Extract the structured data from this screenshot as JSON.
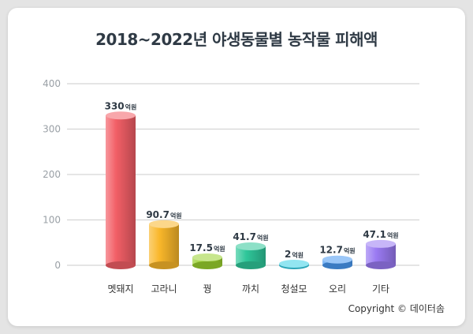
{
  "title": "2018~2022년 야생동물별 농작물 피해액",
  "copyright": "Copyright © 데이터솜",
  "chart_data": {
    "type": "bar",
    "title": "2018~2022년 야생동물별 농작물 피해액",
    "xlabel": "",
    "ylabel": "",
    "ylim": [
      0,
      400
    ],
    "yticks": [
      0,
      100,
      200,
      300,
      400
    ],
    "grid": true,
    "unit": "억원",
    "categories": [
      "멧돼지",
      "고라니",
      "꿩",
      "까치",
      "청설모",
      "오리",
      "기타"
    ],
    "values": [
      330,
      90.7,
      17.5,
      41.7,
      2,
      12.7,
      47.1
    ],
    "value_labels": [
      "330",
      "90.7",
      "17.5",
      "41.7",
      "2",
      "12.7",
      "47.1"
    ],
    "colors": [
      "#f25f66",
      "#f9b72a",
      "#9ad12f",
      "#2fc79a",
      "#38cfe6",
      "#4a9af2",
      "#9a7af2"
    ]
  }
}
